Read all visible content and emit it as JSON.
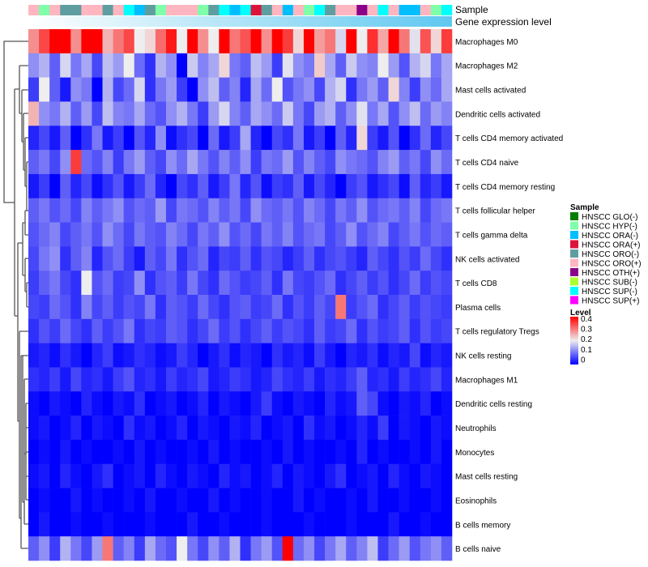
{
  "chart_data": {
    "type": "heatmap",
    "annotation_labels": [
      "Sample",
      "Gene expression level"
    ],
    "rows": [
      "Macrophages M0",
      "Macrophages M2",
      "Mast cells activated",
      "Dendritic cells activated",
      "T cells CD4 memory activated",
      "T cells CD4 naive",
      "T cells CD4 memory resting",
      "T cells follicular helper",
      "T cells gamma delta",
      "NK cells activated",
      "T cells CD8",
      "Plasma cells",
      "T cells regulatory  Tregs",
      "NK cells resting",
      "Macrophages M1",
      "Dendritic cells resting",
      "Neutrophils",
      "Monocytes",
      "Mast cells resting",
      "Eosinophils",
      "B cells memory",
      "B cells naive"
    ],
    "sample_legend": {
      "title": "Sample",
      "entries": [
        {
          "label": "HNSCC GLO(-)",
          "color": "#007F00"
        },
        {
          "label": "HNSCC HYP(-)",
          "color": "#7FFFAA"
        },
        {
          "label": "HNSCC ORA(-)",
          "color": "#00BFFF"
        },
        {
          "label": "HNSCC ORA(+)",
          "color": "#DC143C"
        },
        {
          "label": "HNSCC ORO(-)",
          "color": "#5F9EA0"
        },
        {
          "label": "HNSCC ORO(+)",
          "color": "#FFB6C1"
        },
        {
          "label": "HNSCC OTH(+)",
          "color": "#8B008B"
        },
        {
          "label": "HNSCC SUB(-)",
          "color": "#ADFF2F"
        },
        {
          "label": "HNSCC SUP(-)",
          "color": "#00FFFF"
        },
        {
          "label": "HNSCC SUP(+)",
          "color": "#FF00FF"
        }
      ]
    },
    "level_legend": {
      "title": "Level",
      "ticks": [
        "0.4",
        "0.3",
        "0.2",
        "0.1",
        "0"
      ],
      "range": [
        0,
        0.4
      ],
      "colors": [
        "#0000FF",
        "#EEEEEE",
        "#FF0000"
      ]
    },
    "samples": [
      5,
      1,
      5,
      4,
      4,
      5,
      5,
      4,
      5,
      8,
      2,
      4,
      1,
      5,
      5,
      5,
      1,
      4,
      8,
      2,
      8,
      3,
      4,
      5,
      2,
      5,
      1,
      8,
      4,
      5,
      5,
      6,
      5,
      8,
      5,
      2,
      2,
      5,
      1,
      8
    ],
    "values": [
      [
        0.28,
        0.34,
        0.4,
        0.4,
        0.28,
        0.4,
        0.4,
        0.25,
        0.3,
        0.34,
        0.2,
        0.22,
        0.31,
        0.38,
        0.2,
        0.4,
        0.28,
        0.2,
        0.4,
        0.3,
        0.33,
        0.4,
        0.28,
        0.4,
        0.35,
        0.22,
        0.4,
        0.27,
        0.3,
        0.18,
        0.4,
        0.2,
        0.36,
        0.26,
        0.4,
        0.3,
        0.19,
        0.33,
        0.22,
        0.35
      ],
      [
        0.12,
        0.15,
        0.08,
        0.18,
        0.1,
        0.14,
        0.06,
        0.16,
        0.13,
        0.2,
        0.09,
        0.04,
        0.15,
        0.12,
        0.0,
        0.17,
        0.11,
        0.14,
        0.22,
        0.1,
        0.08,
        0.16,
        0.13,
        0.05,
        0.19,
        0.12,
        0.1,
        0.23,
        0.14,
        0.08,
        0.17,
        0.12,
        0.11,
        0.2,
        0.13,
        0.07,
        0.15,
        0.18,
        0.1,
        0.14
      ],
      [
        0.05,
        0.2,
        0.08,
        0.02,
        0.12,
        0.1,
        0.0,
        0.15,
        0.06,
        0.09,
        0.18,
        0.04,
        0.1,
        0.13,
        0.05,
        0.0,
        0.12,
        0.16,
        0.08,
        0.11,
        0.03,
        0.14,
        0.09,
        0.2,
        0.07,
        0.1,
        0.12,
        0.06,
        0.15,
        0.18,
        0.04,
        0.1,
        0.13,
        0.08,
        0.22,
        0.11,
        0.05,
        0.12,
        0.09,
        0.14
      ],
      [
        0.25,
        0.12,
        0.1,
        0.15,
        0.08,
        0.13,
        0.06,
        0.16,
        0.11,
        0.1,
        0.14,
        0.09,
        0.07,
        0.12,
        0.15,
        0.1,
        0.05,
        0.13,
        0.18,
        0.11,
        0.08,
        0.14,
        0.12,
        0.09,
        0.17,
        0.1,
        0.06,
        0.13,
        0.15,
        0.08,
        0.12,
        0.19,
        0.1,
        0.14,
        0.07,
        0.12,
        0.16,
        0.09,
        0.13,
        0.11
      ],
      [
        0.03,
        0.06,
        0.02,
        0.08,
        0.0,
        0.04,
        0.1,
        0.02,
        0.05,
        0.0,
        0.07,
        0.03,
        0.12,
        0.01,
        0.04,
        0.06,
        0.0,
        0.09,
        0.02,
        0.05,
        0.14,
        0.03,
        0.0,
        0.06,
        0.04,
        0.1,
        0.02,
        0.05,
        0.0,
        0.08,
        0.03,
        0.22,
        0.05,
        0.02,
        0.07,
        0.0,
        0.04,
        0.09,
        0.03,
        0.06
      ],
      [
        0.08,
        0.1,
        0.06,
        0.12,
        0.35,
        0.09,
        0.07,
        0.11,
        0.05,
        0.1,
        0.13,
        0.08,
        0.06,
        0.12,
        0.09,
        0.14,
        0.1,
        0.07,
        0.11,
        0.08,
        0.12,
        0.05,
        0.1,
        0.09,
        0.13,
        0.07,
        0.11,
        0.08,
        0.06,
        0.12,
        0.1,
        0.09,
        0.07,
        0.11,
        0.13,
        0.08,
        0.1,
        0.06,
        0.12,
        0.09
      ],
      [
        0.02,
        0.05,
        0.0,
        0.08,
        0.03,
        0.06,
        0.01,
        0.04,
        0.07,
        0.02,
        0.05,
        0.09,
        0.03,
        0.0,
        0.06,
        0.04,
        0.08,
        0.02,
        0.05,
        0.1,
        0.03,
        0.07,
        0.01,
        0.05,
        0.04,
        0.08,
        0.02,
        0.06,
        0.03,
        0.0,
        0.05,
        0.07,
        0.02,
        0.04,
        0.06,
        0.01,
        0.08,
        0.03,
        0.05,
        0.02
      ],
      [
        0.08,
        0.1,
        0.07,
        0.09,
        0.06,
        0.11,
        0.08,
        0.1,
        0.12,
        0.07,
        0.09,
        0.08,
        0.13,
        0.06,
        0.1,
        0.09,
        0.07,
        0.11,
        0.08,
        0.1,
        0.06,
        0.12,
        0.09,
        0.08,
        0.1,
        0.07,
        0.11,
        0.09,
        0.06,
        0.1,
        0.08,
        0.12,
        0.07,
        0.09,
        0.1,
        0.08,
        0.11,
        0.06,
        0.09,
        0.1
      ],
      [
        0.07,
        0.09,
        0.11,
        0.06,
        0.08,
        0.1,
        0.07,
        0.12,
        0.09,
        0.06,
        0.1,
        0.08,
        0.07,
        0.11,
        0.09,
        0.06,
        0.1,
        0.08,
        0.12,
        0.07,
        0.09,
        0.06,
        0.1,
        0.08,
        0.11,
        0.07,
        0.09,
        0.1,
        0.06,
        0.08,
        0.12,
        0.07,
        0.09,
        0.11,
        0.06,
        0.08,
        0.1,
        0.07,
        0.09,
        0.08
      ],
      [
        0.06,
        0.1,
        0.12,
        0.04,
        0.08,
        0.11,
        0.03,
        0.07,
        0.09,
        0.05,
        0.02,
        0.08,
        0.06,
        0.1,
        0.04,
        0.07,
        0.09,
        0.03,
        0.06,
        0.05,
        0.08,
        0.04,
        0.07,
        0.06,
        0.03,
        0.05,
        0.08,
        0.04,
        0.06,
        0.07,
        0.05,
        0.03,
        0.08,
        0.06,
        0.04,
        0.07,
        0.05,
        0.09,
        0.06,
        0.04
      ],
      [
        0.05,
        0.08,
        0.1,
        0.06,
        0.04,
        0.2,
        0.07,
        0.09,
        0.05,
        0.06,
        0.12,
        0.04,
        0.07,
        0.08,
        0.05,
        0.1,
        0.06,
        0.04,
        0.09,
        0.07,
        0.05,
        0.06,
        0.08,
        0.04,
        0.1,
        0.06,
        0.05,
        0.07,
        0.09,
        0.04,
        0.06,
        0.08,
        0.05,
        0.07,
        0.04,
        0.06,
        0.09,
        0.05,
        0.07,
        0.06
      ],
      [
        0.06,
        0.05,
        0.09,
        0.07,
        0.04,
        0.11,
        0.06,
        0.08,
        0.05,
        0.07,
        0.06,
        0.1,
        0.04,
        0.08,
        0.07,
        0.05,
        0.09,
        0.06,
        0.04,
        0.07,
        0.08,
        0.05,
        0.06,
        0.09,
        0.04,
        0.07,
        0.05,
        0.08,
        0.06,
        0.3,
        0.05,
        0.07,
        0.09,
        0.04,
        0.06,
        0.08,
        0.05,
        0.07,
        0.06,
        0.05
      ],
      [
        0.04,
        0.07,
        0.05,
        0.09,
        0.06,
        0.04,
        0.08,
        0.05,
        0.07,
        0.1,
        0.04,
        0.06,
        0.05,
        0.08,
        0.07,
        0.04,
        0.06,
        0.09,
        0.05,
        0.07,
        0.04,
        0.06,
        0.08,
        0.05,
        0.07,
        0.06,
        0.04,
        0.08,
        0.05,
        0.06,
        0.09,
        0.04,
        0.07,
        0.05,
        0.06,
        0.08,
        0.04,
        0.07,
        0.05,
        0.06
      ],
      [
        0.02,
        0.03,
        0.01,
        0.04,
        0.02,
        0.0,
        0.03,
        0.05,
        0.01,
        0.02,
        0.04,
        0.03,
        0.01,
        0.02,
        0.05,
        0.03,
        0.0,
        0.02,
        0.04,
        0.01,
        0.03,
        0.02,
        0.0,
        0.04,
        0.02,
        0.03,
        0.01,
        0.05,
        0.02,
        0.0,
        0.03,
        0.02,
        0.04,
        0.01,
        0.03,
        0.02,
        0.06,
        0.01,
        0.03,
        0.02
      ],
      [
        0.04,
        0.03,
        0.05,
        0.02,
        0.06,
        0.03,
        0.04,
        0.02,
        0.05,
        0.07,
        0.03,
        0.04,
        0.02,
        0.05,
        0.03,
        0.04,
        0.06,
        0.02,
        0.03,
        0.05,
        0.04,
        0.02,
        0.03,
        0.06,
        0.04,
        0.03,
        0.05,
        0.02,
        0.04,
        0.03,
        0.05,
        0.08,
        0.03,
        0.04,
        0.02,
        0.05,
        0.03,
        0.04,
        0.06,
        0.03
      ],
      [
        0.01,
        0.0,
        0.02,
        0.01,
        0.0,
        0.03,
        0.01,
        0.0,
        0.02,
        0.01,
        0.04,
        0.0,
        0.01,
        0.02,
        0.0,
        0.01,
        0.03,
        0.0,
        0.02,
        0.01,
        0.0,
        0.02,
        0.05,
        0.01,
        0.0,
        0.02,
        0.01,
        0.0,
        0.03,
        0.01,
        0.02,
        0.08,
        0.06,
        0.01,
        0.0,
        0.02,
        0.01,
        0.03,
        0.0,
        0.01
      ],
      [
        0.01,
        0.02,
        0.0,
        0.01,
        0.03,
        0.0,
        0.02,
        0.01,
        0.0,
        0.04,
        0.01,
        0.02,
        0.0,
        0.01,
        0.03,
        0.0,
        0.02,
        0.01,
        0.0,
        0.02,
        0.01,
        0.03,
        0.0,
        0.01,
        0.02,
        0.0,
        0.04,
        0.01,
        0.02,
        0.0,
        0.01,
        0.03,
        0.01,
        0.05,
        0.0,
        0.02,
        0.01,
        0.0,
        0.02,
        0.01
      ],
      [
        0.0,
        0.01,
        0.0,
        0.02,
        0.0,
        0.01,
        0.0,
        0.0,
        0.01,
        0.0,
        0.02,
        0.0,
        0.01,
        0.0,
        0.0,
        0.01,
        0.0,
        0.02,
        0.0,
        0.01,
        0.0,
        0.0,
        0.01,
        0.0,
        0.02,
        0.0,
        0.01,
        0.0,
        0.0,
        0.01,
        0.0,
        0.03,
        0.0,
        0.01,
        0.0,
        0.0,
        0.01,
        0.0,
        0.02,
        0.0
      ],
      [
        0.01,
        0.02,
        0.0,
        0.03,
        0.01,
        0.0,
        0.02,
        0.04,
        0.0,
        0.01,
        0.02,
        0.0,
        0.03,
        0.01,
        0.0,
        0.02,
        0.01,
        0.0,
        0.03,
        0.01,
        0.02,
        0.0,
        0.01,
        0.03,
        0.0,
        0.02,
        0.01,
        0.0,
        0.02,
        0.04,
        0.0,
        0.01,
        0.02,
        0.0,
        0.03,
        0.01,
        0.0,
        0.02,
        0.01,
        0.0
      ],
      [
        0.0,
        0.01,
        0.0,
        0.0,
        0.02,
        0.0,
        0.01,
        0.0,
        0.0,
        0.01,
        0.0,
        0.02,
        0.0,
        0.0,
        0.01,
        0.0,
        0.0,
        0.02,
        0.0,
        0.01,
        0.0,
        0.0,
        0.01,
        0.0,
        0.0,
        0.02,
        0.0,
        0.01,
        0.0,
        0.0,
        0.01,
        0.0,
        0.02,
        0.0,
        0.0,
        0.01,
        0.0,
        0.0,
        0.01,
        0.0
      ],
      [
        0.0,
        0.02,
        0.0,
        0.0,
        0.01,
        0.0,
        0.0,
        0.01,
        0.0,
        0.0,
        0.0,
        0.01,
        0.0,
        0.0,
        0.0,
        0.02,
        0.0,
        0.0,
        0.01,
        0.0,
        0.0,
        0.0,
        0.01,
        0.0,
        0.0,
        0.0,
        0.01,
        0.0,
        0.0,
        0.0,
        0.01,
        0.0,
        0.0,
        0.0,
        0.02,
        0.0,
        0.0,
        0.01,
        0.0,
        0.0
      ],
      [
        0.08,
        0.12,
        0.05,
        0.15,
        0.1,
        0.06,
        0.13,
        0.3,
        0.08,
        0.11,
        0.05,
        0.14,
        0.09,
        0.07,
        0.2,
        0.1,
        0.06,
        0.12,
        0.08,
        0.15,
        0.04,
        0.1,
        0.13,
        0.07,
        0.4,
        0.09,
        0.12,
        0.06,
        0.1,
        0.14,
        0.08,
        0.11,
        0.16,
        0.05,
        0.09,
        0.13,
        0.07,
        0.1,
        0.12,
        0.08
      ]
    ]
  }
}
